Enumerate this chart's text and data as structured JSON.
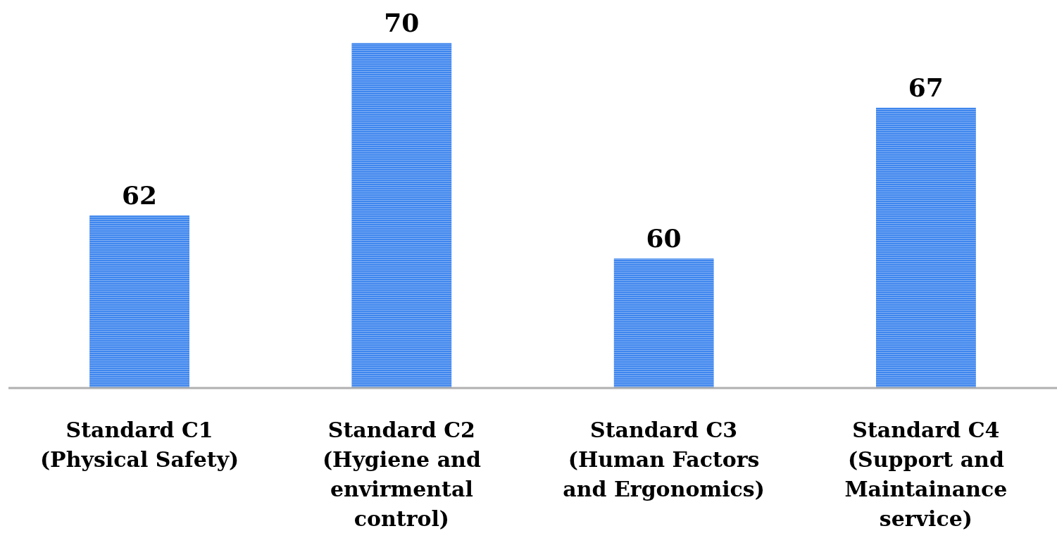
{
  "chart_data": {
    "type": "bar",
    "categories": [
      "Standard C1 (Physical Safety)",
      "Standard C2 (Hygiene and envirmental control)",
      "Standard C3 (Human Factors and Ergonomics)",
      "Standard C4 (Support and Maintainance service)"
    ],
    "values": [
      62,
      70,
      60,
      67
    ],
    "color": "#3f86ee",
    "ylim": [
      54,
      72
    ],
    "data_labels": true,
    "tick_labels": "x"
  }
}
